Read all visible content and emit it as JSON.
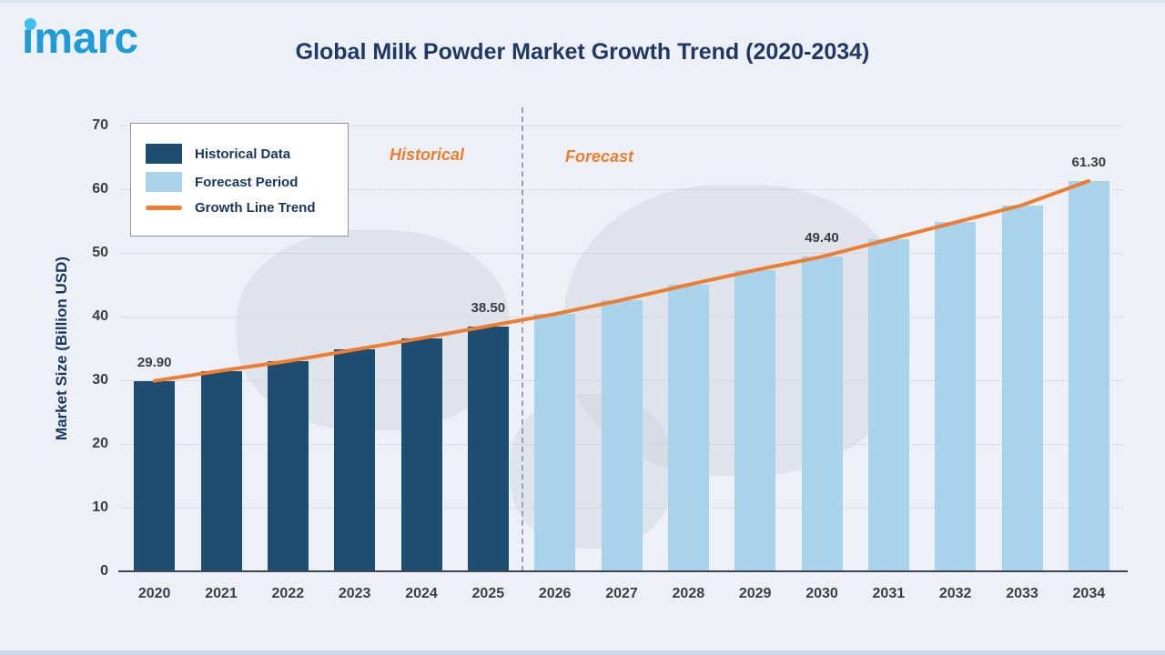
{
  "header": {
    "logo_text": "imarc",
    "title": "Global Milk Powder Market Growth Trend (2020-2034)"
  },
  "chart_data": {
    "type": "bar",
    "title": "Global Milk Powder Market Growth Trend (2020-2034)",
    "ylabel": "Market Size (Billion USD)",
    "ylim": [
      0,
      70
    ],
    "yticks": [
      0,
      10,
      20,
      30,
      40,
      50,
      60,
      70
    ],
    "grid": "dotted-horizontal",
    "legend_position": "top-left",
    "categories": [
      "2020",
      "2021",
      "2022",
      "2023",
      "2024",
      "2025",
      "2026",
      "2027",
      "2028",
      "2029",
      "2030",
      "2031",
      "2032",
      "2033",
      "2034"
    ],
    "values": [
      29.9,
      31.5,
      33.0,
      34.8,
      36.6,
      38.5,
      40.4,
      42.6,
      45.0,
      47.3,
      49.4,
      52.1,
      54.8,
      57.5,
      61.3
    ],
    "historical_count": 6,
    "series": [
      {
        "name": "Historical Data",
        "categories": [
          "2020",
          "2021",
          "2022",
          "2023",
          "2024",
          "2025"
        ],
        "values": [
          29.9,
          31.5,
          33.0,
          34.8,
          36.6,
          38.5
        ]
      },
      {
        "name": "Forecast Period",
        "categories": [
          "2026",
          "2027",
          "2028",
          "2029",
          "2030",
          "2031",
          "2032",
          "2033",
          "2034"
        ],
        "values": [
          40.4,
          42.6,
          45.0,
          47.3,
          49.4,
          52.1,
          54.8,
          57.5,
          61.3
        ]
      }
    ],
    "data_labels": {
      "2020": "29.90",
      "2025": "38.50",
      "2030": "49.40",
      "2034": "61.30"
    },
    "legend": [
      {
        "label": "Historical Data",
        "swatch": "hist"
      },
      {
        "label": "Forecast Period",
        "swatch": "forecast"
      },
      {
        "label": "Growth Line Trend",
        "swatch": "line"
      }
    ],
    "annotations": {
      "historical": "Historical",
      "forecast": "Forecast"
    },
    "colors": {
      "historical_bar": "#1D4D70",
      "forecast_bar": "#A9D2EC",
      "trend_line": "#ED7D31",
      "title": "#1F3864",
      "axis_text": "#3D3D3D",
      "grid": "#C4CAD6",
      "background": "#EDF1F7"
    }
  }
}
